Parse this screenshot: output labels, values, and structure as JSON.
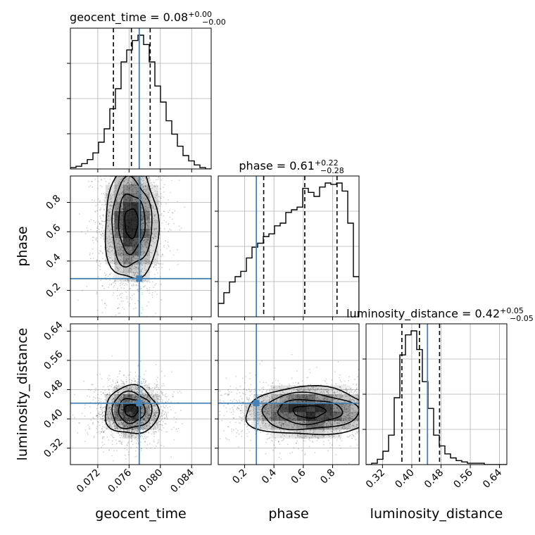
{
  "chart_data": {
    "type": "corner",
    "parameters": [
      "geocent_time",
      "phase",
      "luminosity_distance"
    ],
    "titles": [
      {
        "param": "geocent_time",
        "label": "geocent_time = 0.08",
        "sup": "+0.00",
        "sub": "−0.00"
      },
      {
        "param": "phase",
        "label": "phase = 0.61",
        "sup": "+0.22",
        "sub": "−0.28"
      },
      {
        "param": "luminosity_distance",
        "label": "luminosity_distance = 0.42",
        "sup": "+0.05",
        "sub": "−0.05"
      }
    ],
    "axis_labels": {
      "x": [
        "geocent_time",
        "phase",
        "luminosity_distance"
      ],
      "y": [
        "phase",
        "luminosity_distance"
      ]
    },
    "ranges": {
      "geocent_time": [
        0.0685,
        0.0865
      ],
      "phase": [
        0.02,
        0.98
      ],
      "luminosity_distance": [
        0.275,
        0.66
      ]
    },
    "ticks": {
      "geocent_time": {
        "values": [
          0.072,
          0.076,
          0.08,
          0.084
        ],
        "labels": [
          "0.072",
          "0.076",
          "0.080",
          "0.084"
        ]
      },
      "phase": {
        "values": [
          0.2,
          0.4,
          0.6,
          0.8
        ],
        "labels": [
          "0.2",
          "0.4",
          "0.6",
          "0.8"
        ]
      },
      "luminosity_distance": {
        "values": [
          0.32,
          0.4,
          0.48,
          0.56,
          0.64
        ],
        "labels": [
          "0.32",
          "0.40",
          "0.48",
          "0.56",
          "0.64"
        ]
      }
    },
    "truths": {
      "geocent_time": 0.0773,
      "phase": 0.28,
      "luminosity_distance": 0.443
    },
    "quantiles": {
      "geocent_time": [
        0.074,
        0.0763,
        0.0787
      ],
      "phase": [
        0.33,
        0.61,
        0.83
      ],
      "luminosity_distance": [
        0.373,
        0.421,
        0.476
      ]
    },
    "histograms": {
      "geocent_time": [
        0.01,
        0.02,
        0.04,
        0.07,
        0.12,
        0.2,
        0.3,
        0.45,
        0.6,
        0.8,
        0.89,
        0.96,
        1.0,
        0.93,
        0.8,
        0.62,
        0.5,
        0.36,
        0.26,
        0.17,
        0.1,
        0.06,
        0.03,
        0.01,
        0.0
      ],
      "phase": [
        0.1,
        0.18,
        0.26,
        0.3,
        0.34,
        0.44,
        0.52,
        0.55,
        0.6,
        0.62,
        0.68,
        0.7,
        0.78,
        0.8,
        0.82,
        0.96,
        0.93,
        0.9,
        0.97,
        1.0,
        0.99,
        1.0,
        0.94,
        0.7,
        0.3
      ],
      "luminosity_distance": [
        0.0,
        0.01,
        0.04,
        0.1,
        0.22,
        0.5,
        0.82,
        0.97,
        1.0,
        0.86,
        0.62,
        0.42,
        0.22,
        0.14,
        0.08,
        0.05,
        0.03,
        0.02,
        0.01,
        0.01,
        0.01,
        0.0,
        0.0,
        0.0,
        0.0
      ]
    },
    "grid": true,
    "hist_color": "#000000",
    "truth_color": "#4682b4",
    "grid_color": "#b0b0b0"
  }
}
